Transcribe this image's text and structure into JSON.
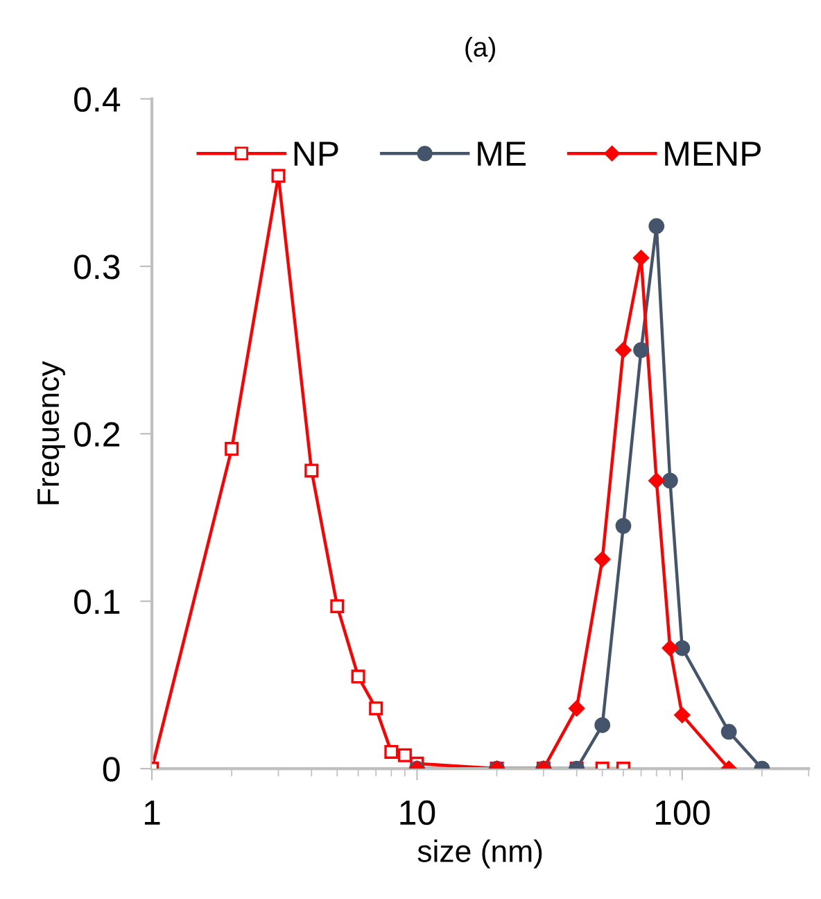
{
  "chart_data": {
    "type": "line",
    "title": "(a)",
    "xlabel": "size (nm)",
    "ylabel": "Frequency",
    "log": "x",
    "xlim": [
      1,
      300
    ],
    "xticks": [
      1,
      10,
      100
    ],
    "ylim": [
      0,
      0.4
    ],
    "yticks": [
      0,
      0.1,
      0.2,
      0.3,
      0.4
    ],
    "grid": false,
    "legend": "top",
    "series": [
      {
        "name": "NP",
        "color": "#ff0000",
        "marker": "square",
        "x": [
          1,
          2,
          3,
          4,
          5,
          6,
          7,
          8,
          9,
          10,
          20,
          30,
          40,
          50,
          60
        ],
        "values": [
          0,
          0.191,
          0.354,
          0.178,
          0.097,
          0.055,
          0.036,
          0.01,
          0.008,
          0.003,
          0,
          0,
          0,
          0,
          0
        ]
      },
      {
        "name": "ME",
        "color": "#44546a",
        "marker": "circle",
        "x": [
          10,
          20,
          30,
          40,
          50,
          60,
          70,
          80,
          90,
          100,
          150,
          200
        ],
        "values": [
          0,
          0,
          0,
          0,
          0.026,
          0.145,
          0.25,
          0.324,
          0.172,
          0.072,
          0.022,
          0
        ]
      },
      {
        "name": "MENP",
        "color": "#ff0000",
        "marker": "diamond",
        "x": [
          10,
          20,
          30,
          40,
          50,
          60,
          70,
          80,
          90,
          100,
          150
        ],
        "values": [
          0,
          0,
          0,
          0.036,
          0.125,
          0.25,
          0.305,
          0.172,
          0.072,
          0.032,
          0
        ]
      }
    ]
  }
}
